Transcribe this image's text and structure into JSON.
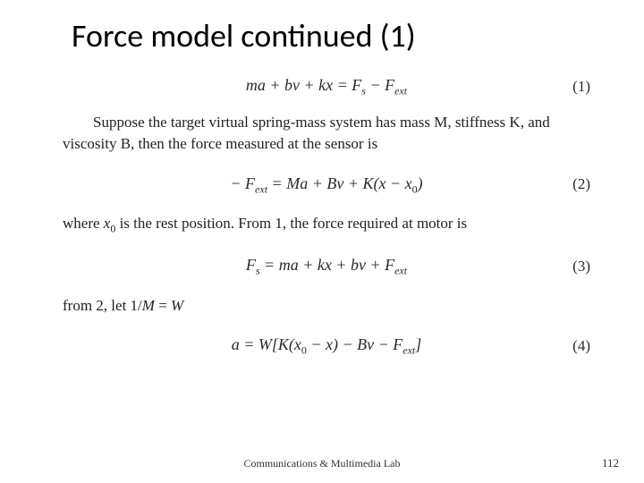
{
  "title": "Force model continued (1)",
  "equations": [
    {
      "html": "ma + bv + kx = F<span class='sub'>s</span> − F<span class='sub'>ext</span>",
      "num": "(1)"
    },
    {
      "html": "− F<span class='sub'>ext</span> = Ma + Bv + K(x − x<span class='sub rm'>0</span>)",
      "num": "(2)"
    },
    {
      "html": "F<span class='sub'>s</span> = ma + kx + bv + F<span class='sub'>ext</span>",
      "num": "(3)"
    },
    {
      "html": "a = W[K(x<span class='sub rm'>0</span> − x) − Bv − F<span class='sub'>ext</span>]",
      "num": "(4)"
    }
  ],
  "paragraphs": [
    "<span class='indent'></span>Suppose the target virtual spring-mass system has mass M, stiffness K, and viscosity B, then the force measured at the sensor is",
    "where <i>x</i><span class='sub rm'>0</span> is the rest position. From 1, the force required at motor is",
    "from 2, let 1/<i>M</i> = <i>W</i>"
  ],
  "footer": "Communications & Multimedia Lab",
  "page_number": "112",
  "colors": {
    "background": "#ffffff",
    "text": "#222222",
    "title": "#000000"
  },
  "typography": {
    "title_fontsize": 36,
    "body_fontsize": 17,
    "eq_fontsize": 18,
    "footer_fontsize": 12
  }
}
